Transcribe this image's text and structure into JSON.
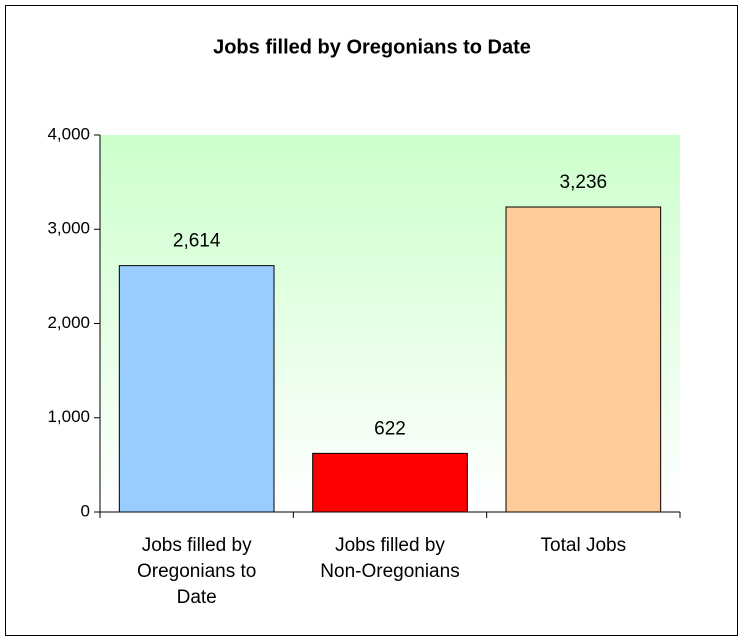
{
  "chart_data": {
    "type": "bar",
    "title": "Jobs filled by Oregonians to Date",
    "categories": [
      "Jobs filled by Oregonians to Date",
      "Jobs filled by Non-Oregonians",
      "Total Jobs"
    ],
    "values": [
      2614,
      622,
      3236
    ],
    "value_labels": [
      "2,614",
      "622",
      "3,236"
    ],
    "colors": [
      "#99ccff",
      "#ff0000",
      "#ffcc99"
    ],
    "ylim": [
      0,
      4000
    ],
    "yticks": [
      0,
      {
        "value": 1000,
        "label": "1,000"
      },
      {
        "value": 2000,
        "label": "2,000"
      },
      {
        "value": 3000,
        "label": "3,000"
      },
      {
        "value": 4000,
        "label": "4,000"
      }
    ]
  }
}
